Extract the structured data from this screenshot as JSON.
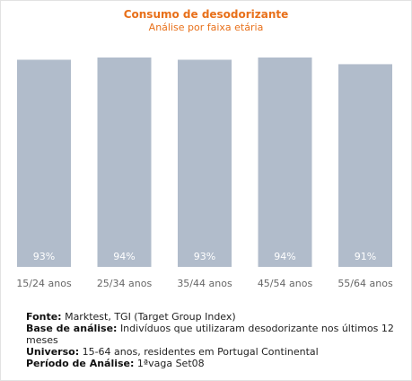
{
  "colors": {
    "title": "#e8701a",
    "bar": "#b1bccb",
    "bar_label": "#ffffff",
    "tick": "#666666"
  },
  "chart_data": {
    "type": "bar",
    "title": "Consumo de desodorizante",
    "subtitle": "Análise por faixa etária",
    "categories": [
      "15/24 anos",
      "25/34 anos",
      "35/44 anos",
      "45/54 anos",
      "55/64 anos"
    ],
    "values": [
      93,
      94,
      93,
      94,
      91
    ],
    "data_labels": [
      "93%",
      "94%",
      "93%",
      "94%",
      "91%"
    ],
    "ylim": [
      0,
      94
    ],
    "grid": false,
    "legend": "none"
  },
  "notes": {
    "fonte_label": "Fonte:",
    "fonte_value": "Marktest, TGI (Target Group Index)",
    "base_label": "Base de análise:",
    "base_value": "Indivíduos que utilizaram desodorizante nos últimos 12 meses",
    "universo_label": "Universo:",
    "universo_value": "15-64 anos, residentes em Portugal Continental",
    "periodo_label": "Período de Análise:",
    "periodo_value": "1ªvaga Set08"
  }
}
